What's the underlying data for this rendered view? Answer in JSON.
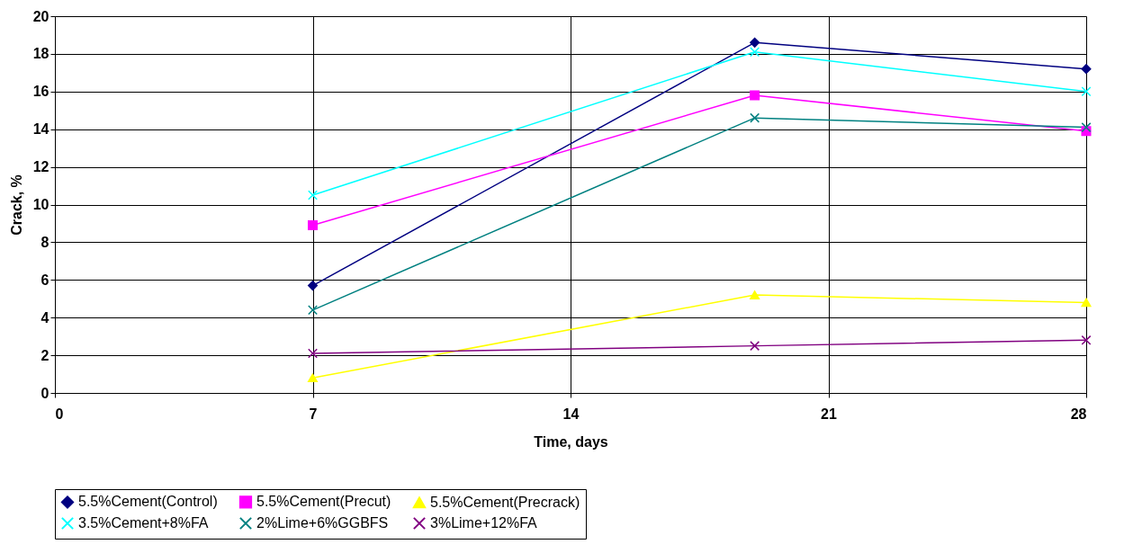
{
  "chart_data": {
    "type": "line",
    "xlabel": "Time, days",
    "ylabel": "Crack,  %",
    "xlim": [
      0,
      28
    ],
    "xticks": [
      0,
      7,
      14,
      21,
      28
    ],
    "ylim": [
      0,
      20
    ],
    "yticks": [
      0,
      2,
      4,
      6,
      8,
      10,
      12,
      14,
      16,
      18,
      20
    ],
    "grid": true,
    "legend": "bottom",
    "x": [
      7,
      19,
      28
    ],
    "series": [
      {
        "name": "5.5%Cement(Control)",
        "color": "#000080",
        "marker": "diamond",
        "values": [
          5.7,
          18.6,
          17.2
        ]
      },
      {
        "name": "5.5%Cement(Precut)",
        "color": "#ff00ff",
        "marker": "square",
        "values": [
          8.9,
          15.8,
          13.9
        ]
      },
      {
        "name": "5.5%Cement(Precrack)",
        "color": "#ffff00",
        "marker": "triangle",
        "values": [
          0.8,
          5.2,
          4.8
        ]
      },
      {
        "name": "3.5%Cement+8%FA",
        "color": "#00ffff",
        "marker": "cross",
        "values": [
          10.5,
          18.1,
          16.0
        ]
      },
      {
        "name": "2%Lime+6%GGBFS",
        "color": "#008080",
        "marker": "cross",
        "values": [
          4.4,
          14.6,
          14.1
        ]
      },
      {
        "name": "3%Lime+12%FA",
        "color": "#800080",
        "marker": "cross",
        "values": [
          2.1,
          2.5,
          2.8
        ]
      }
    ]
  }
}
